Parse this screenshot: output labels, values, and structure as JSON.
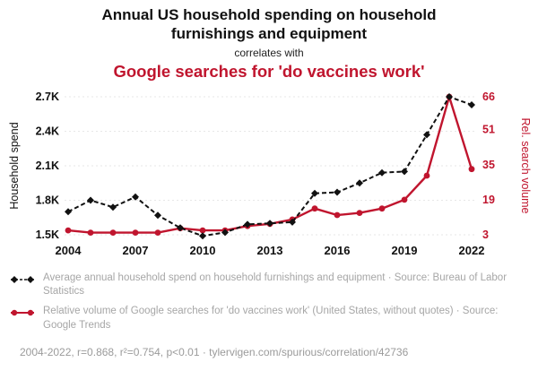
{
  "header": {
    "title": "Annual US household spending on household furnishings and equipment",
    "connector": "correlates with",
    "secondary_title": "Google searches for 'do vaccines work'"
  },
  "colors": {
    "spend": "#111111",
    "search": "#c0152e",
    "legend_text": "#a6a6a6",
    "grid": "#e7e7e7"
  },
  "chart_data": {
    "type": "line",
    "x": [
      2004,
      2005,
      2006,
      2007,
      2008,
      2009,
      2010,
      2011,
      2012,
      2013,
      2014,
      2015,
      2016,
      2017,
      2018,
      2019,
      2020,
      2021,
      2022
    ],
    "x_tick_labels": [
      "2004",
      "2007",
      "2010",
      "2013",
      "2016",
      "2019",
      "2022"
    ],
    "left_axis": {
      "label": "Household spend",
      "tick_labels": [
        "1.5K",
        "1.8K",
        "2.1K",
        "2.4K",
        "2.7K"
      ],
      "tick_values": [
        1.5,
        1.8,
        2.1,
        2.4,
        2.7
      ],
      "range": [
        1.5,
        2.7
      ]
    },
    "right_axis": {
      "label": "Rel. search volume",
      "tick_labels": [
        "3",
        "19",
        "35",
        "51",
        "66"
      ],
      "tick_values": [
        3,
        19,
        35,
        51,
        66
      ],
      "range": [
        3,
        66
      ]
    },
    "grid": true,
    "legend_position": "below",
    "series": [
      {
        "name": "Average annual household spend on household furnishings and equipment",
        "axis": "left",
        "color": "#111111",
        "line_style": "dashed",
        "marker": "diamond",
        "values": [
          1.7,
          1.8,
          1.74,
          1.83,
          1.67,
          1.56,
          1.49,
          1.52,
          1.59,
          1.6,
          1.61,
          1.86,
          1.87,
          1.95,
          2.04,
          2.05,
          2.37,
          2.7,
          2.63
        ]
      },
      {
        "name": "Relative volume of Google searches for 'do vaccines work'",
        "axis": "right",
        "color": "#c0152e",
        "line_style": "solid",
        "marker": "circle",
        "values": [
          5,
          4,
          4,
          4,
          4,
          6,
          5,
          5,
          7,
          8,
          10,
          15,
          12,
          13,
          15,
          19,
          30,
          66,
          33
        ]
      }
    ]
  },
  "legend": {
    "items": [
      {
        "label": "Average annual household spend on household furnishings and equipment · Source: Bureau of Labor Statistics",
        "color": "#111111"
      },
      {
        "label": "Relative volume of Google searches for 'do vaccines work' (United States, without quotes) · Source: Google Trends",
        "color": "#c0152e"
      }
    ]
  },
  "footer": {
    "text": "2004-2022, r=0.868, r²=0.754, p<0.01 · tylervigen.com/spurious/correlation/42736"
  }
}
